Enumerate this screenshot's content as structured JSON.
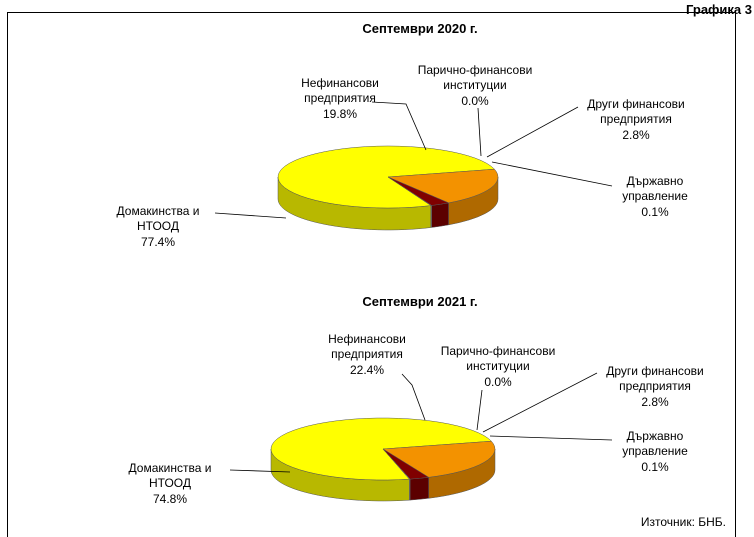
{
  "header": "Графика 3",
  "source": "Източник:  БНБ.",
  "chart_data": [
    {
      "type": "pie",
      "title": "Септември 2020 г.",
      "categories": [
        "Домакинства и\nНТООД",
        "Нефинансови\nпредприятия",
        "Парично-финансови\nинституции",
        "Други финансови\nпредприятия",
        "Държавно\nуправление"
      ],
      "values": [
        77.4,
        19.8,
        0.0,
        2.8,
        0.1
      ],
      "value_labels": [
        "77.4%",
        "19.8%",
        "0.0%",
        "2.8%",
        "0.1%"
      ],
      "colors": [
        "#ffff00",
        "#f39200",
        "#3366cc",
        "#800000",
        "#c0c0c0"
      ]
    },
    {
      "type": "pie",
      "title": "Септември 2021 г.",
      "categories": [
        "Домакинства и\nНТООД",
        "Нефинансови\nпредприятия",
        "Парично-финансови\nинституции",
        "Други финансови\nпредприятия",
        "Държавно\nуправление"
      ],
      "values": [
        74.8,
        22.4,
        0.0,
        2.8,
        0.1
      ],
      "value_labels": [
        "74.8%",
        "22.4%",
        "0.0%",
        "2.8%",
        "0.1%"
      ],
      "colors": [
        "#ffff00",
        "#f39200",
        "#3366cc",
        "#800000",
        "#c0c0c0"
      ]
    }
  ]
}
